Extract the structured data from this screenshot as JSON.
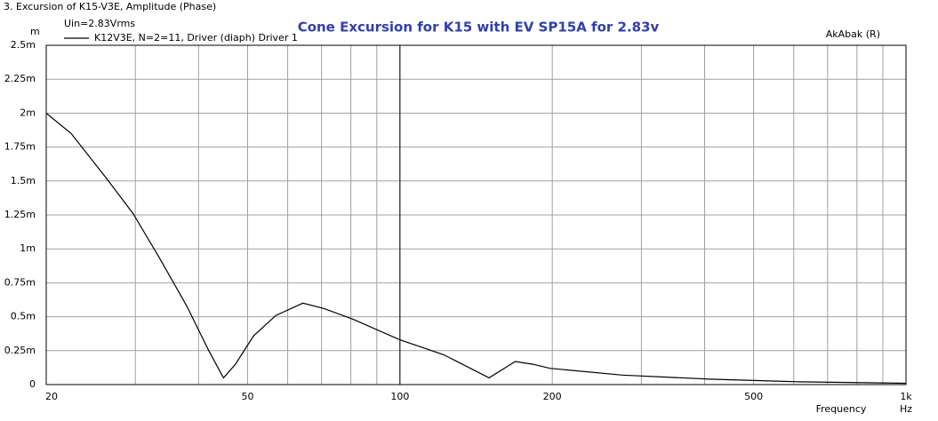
{
  "chart_data": {
    "type": "line",
    "header": "3. Excursion of K15-V3E, Amplitude (Phase)",
    "title": "Cone Excursion for K15 with EV SP15A for 2.83v",
    "subtitle": "Uin=2.83Vrms",
    "watermark": "AkAbak (R)",
    "y_unit": "m",
    "x_label": "Frequency",
    "x_unit": "Hz",
    "x_log": true,
    "grid": true,
    "xlim": [
      20,
      1000
    ],
    "ylim": [
      0,
      2.5
    ],
    "xticks": [
      20,
      50,
      100,
      200,
      500,
      {
        "value": 1000,
        "label": "1k"
      }
    ],
    "xminor": [
      30,
      40,
      60,
      70,
      80,
      90,
      300,
      400,
      600,
      700,
      800,
      900
    ],
    "xmajor": [
      100
    ],
    "yticks": [
      0,
      {
        "value": 0.25,
        "label": "0.25m"
      },
      {
        "value": 0.5,
        "label": "0.5m"
      },
      {
        "value": 0.75,
        "label": "0.75m"
      },
      {
        "value": 1,
        "label": "1m"
      },
      {
        "value": 1.25,
        "label": "1.25m"
      },
      {
        "value": 1.5,
        "label": "1.5m"
      },
      {
        "value": 1.75,
        "label": "1.75m"
      },
      {
        "value": 2,
        "label": "2m"
      },
      {
        "value": 2.25,
        "label": "2.25m"
      },
      {
        "value": 2.5,
        "label": "2.5m"
      }
    ],
    "x": [
      20,
      22.4,
      26.3,
      29.7,
      33.4,
      37.9,
      41.9,
      44.8,
      47.3,
      51.4,
      56.9,
      64.3,
      70.8,
      81,
      100,
      122,
      150,
      169,
      183,
      198,
      275,
      410,
      617,
      1000
    ],
    "series": [
      {
        "name": "K12V3E, N=2=11, Driver (diaph) Driver 1",
        "color": "#000000",
        "values": [
          2.0,
          1.85,
          1.52,
          1.26,
          0.94,
          0.58,
          0.25,
          0.05,
          0.15,
          0.36,
          0.51,
          0.6,
          0.56,
          0.48,
          0.33,
          0.22,
          0.05,
          0.17,
          0.15,
          0.12,
          0.07,
          0.04,
          0.02,
          0.01
        ]
      }
    ]
  }
}
